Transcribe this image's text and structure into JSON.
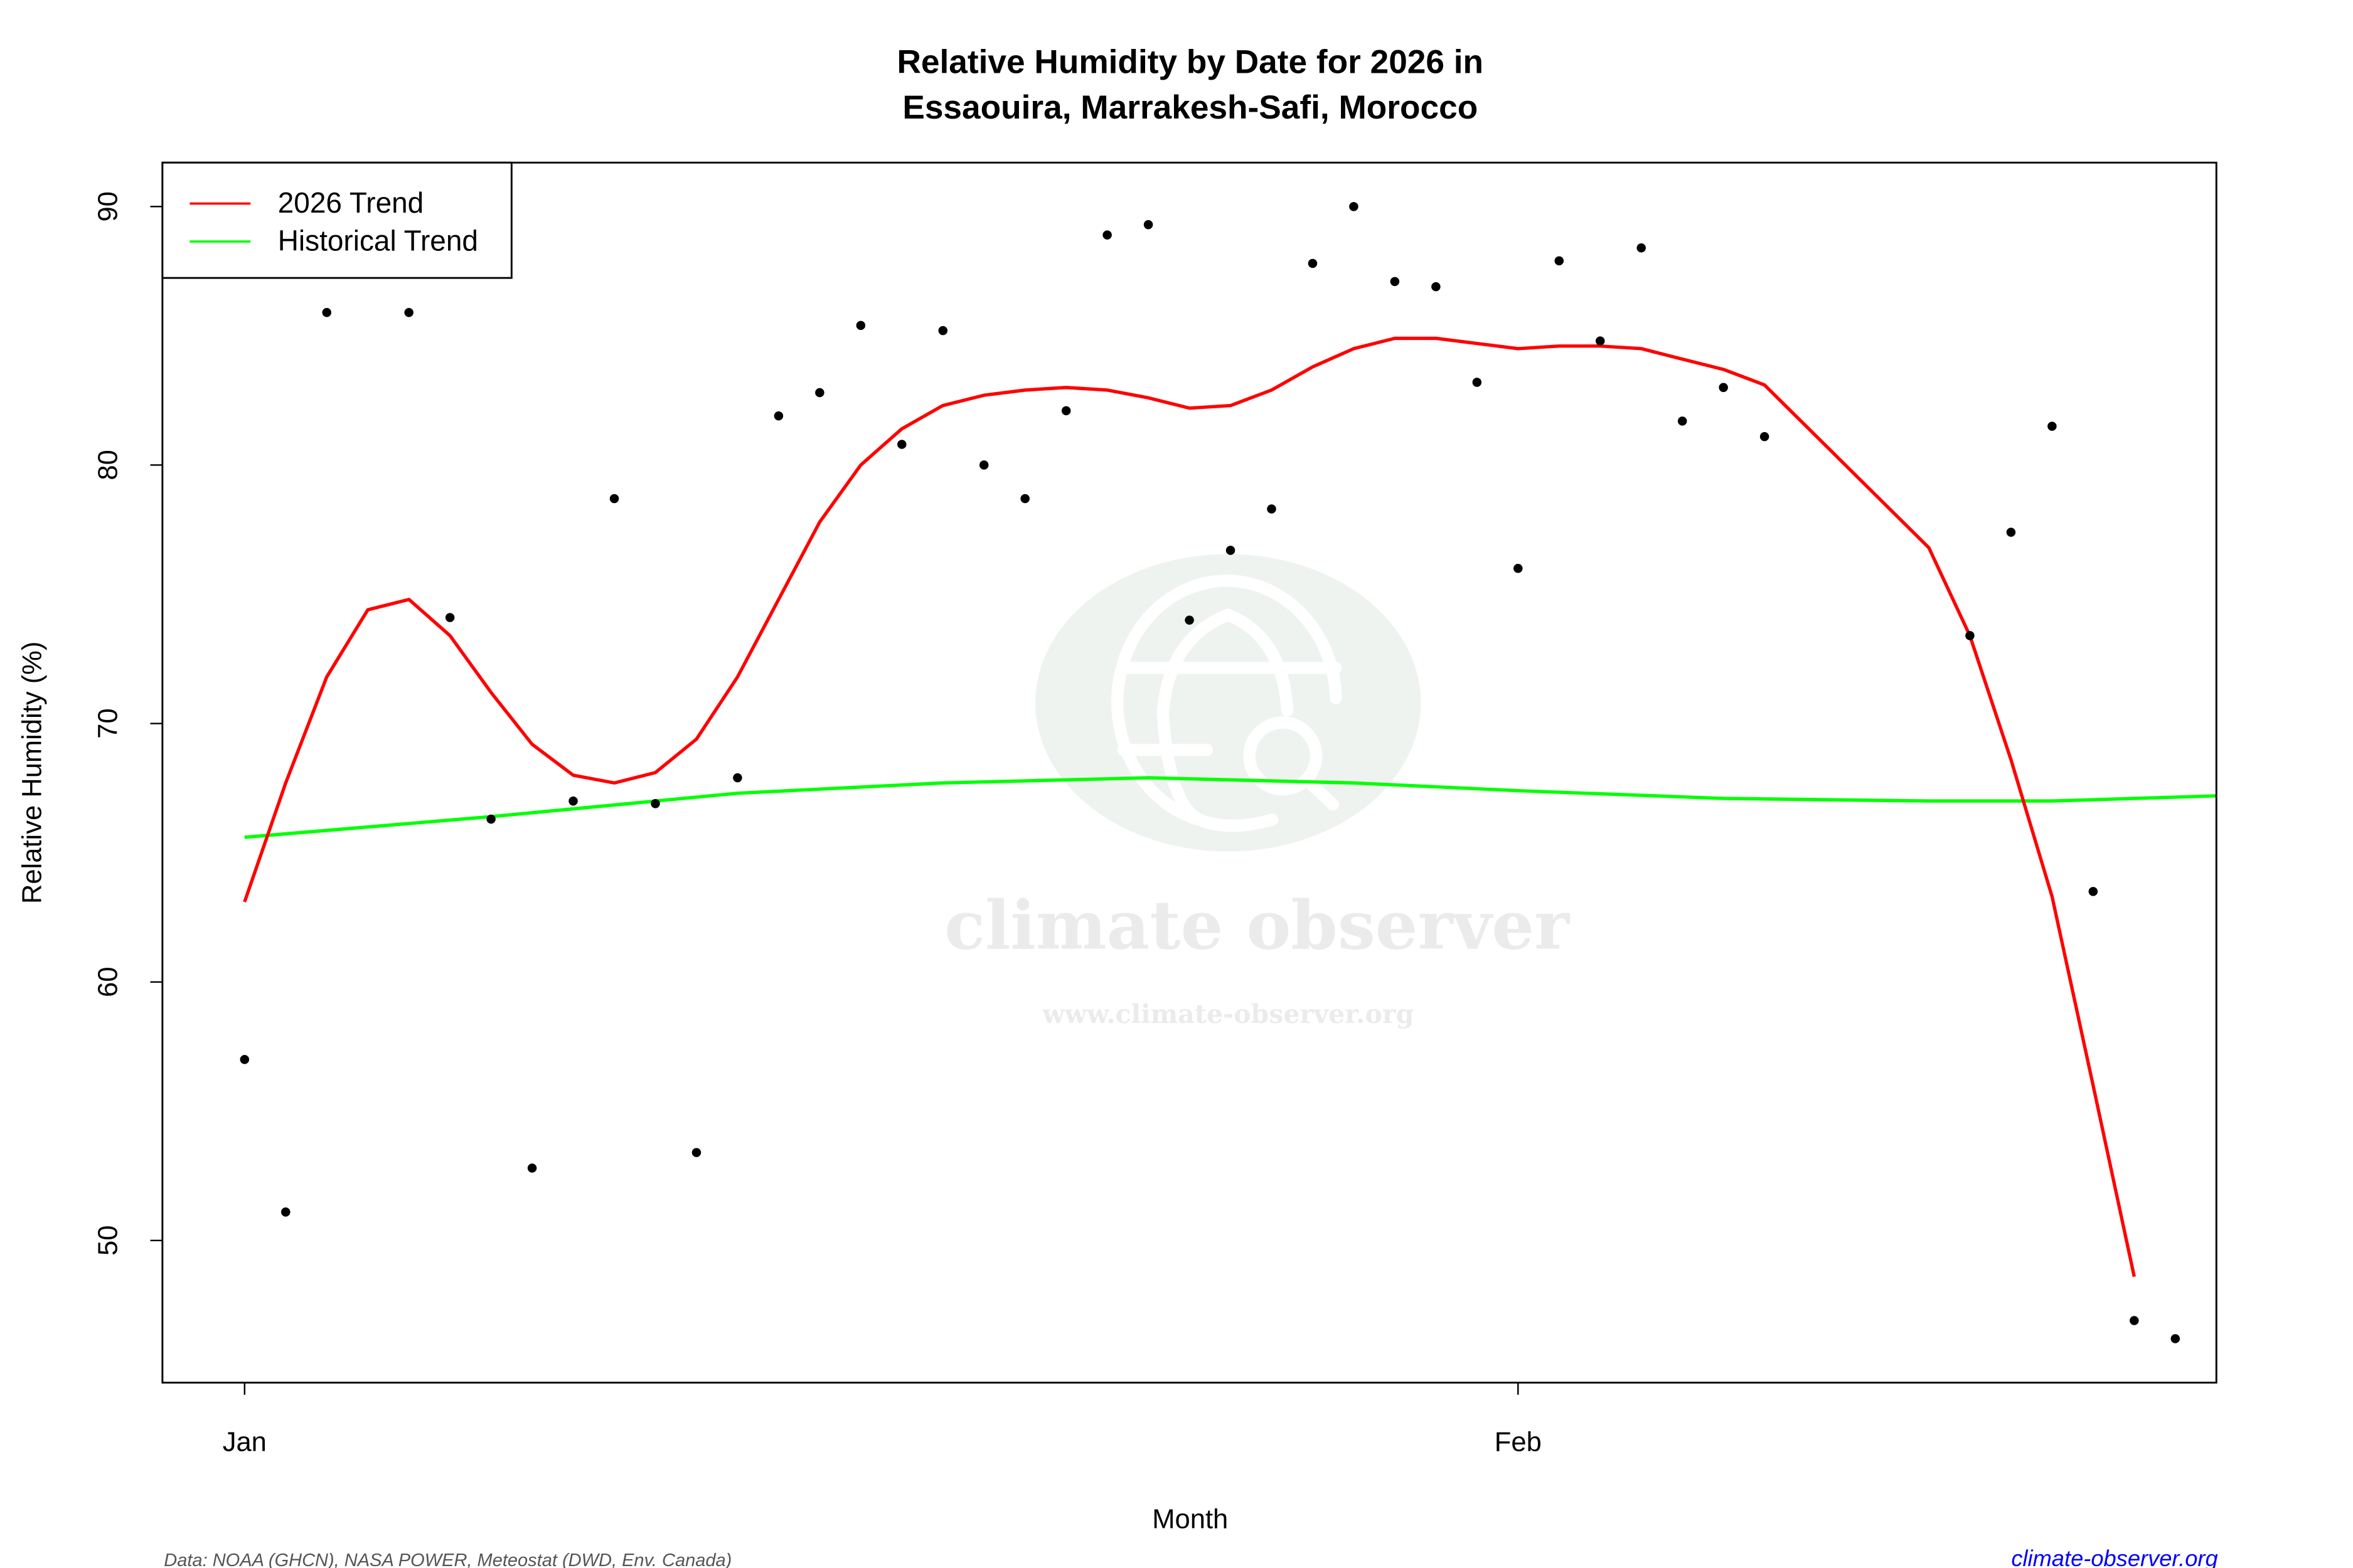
{
  "chart_data": {
    "type": "scatter",
    "title_line1": "Relative Humidity by Date for 2026 in",
    "title_line2": "Essaouira, Marrakesh-Safi, Morocco",
    "xlabel": "Month",
    "ylabel": "Relative Humidity (%)",
    "xlim": [
      "2025-12-30",
      "2026-02-18"
    ],
    "ylim": [
      44.5,
      91.7
    ],
    "x_ticks": [
      {
        "date": "2026-01-01",
        "label": "Jan"
      },
      {
        "date": "2026-02-01",
        "label": "Feb"
      }
    ],
    "y_ticks": [
      50,
      60,
      70,
      80,
      90
    ],
    "grid": false,
    "legend_position": "top-left",
    "points": {
      "color": "#000000",
      "x": [
        "2026-01-01",
        "2026-01-02",
        "2026-01-03",
        "2026-01-05",
        "2026-01-06",
        "2026-01-07",
        "2026-01-08",
        "2026-01-09",
        "2026-01-10",
        "2026-01-11",
        "2026-01-12",
        "2026-01-13",
        "2026-01-14",
        "2026-01-15",
        "2026-01-16",
        "2026-01-17",
        "2026-01-18",
        "2026-01-19",
        "2026-01-20",
        "2026-01-21",
        "2026-01-22",
        "2026-01-23",
        "2026-01-24",
        "2026-01-25",
        "2026-01-26",
        "2026-01-27",
        "2026-01-28",
        "2026-01-29",
        "2026-01-30",
        "2026-01-31",
        "2026-02-01",
        "2026-02-02",
        "2026-02-03",
        "2026-02-04",
        "2026-02-05",
        "2026-02-06",
        "2026-02-07",
        "2026-02-08",
        "2026-02-12",
        "2026-02-13",
        "2026-02-14",
        "2026-02-15",
        "2026-02-16",
        "2026-02-17"
      ],
      "y": [
        57.0,
        51.1,
        85.9,
        85.9,
        74.1,
        66.3,
        52.8,
        67.0,
        78.7,
        66.9,
        53.4,
        67.9,
        81.9,
        82.8,
        85.4,
        80.8,
        85.2,
        80.0,
        78.7,
        82.1,
        88.9,
        89.3,
        74.0,
        76.7,
        78.3,
        87.8,
        90.0,
        87.1,
        86.9,
        83.2,
        76.0,
        87.9,
        84.8,
        88.4,
        81.7,
        83.0,
        81.1,
        null,
        73.4,
        77.4,
        81.5,
        63.5,
        46.9,
        46.2
      ]
    },
    "series": [
      {
        "name": "2026 Trend",
        "color": "#ff0000",
        "x": [
          "2026-01-01",
          "2026-01-02",
          "2026-01-03",
          "2026-01-04",
          "2026-01-05",
          "2026-01-06",
          "2026-01-07",
          "2026-01-08",
          "2026-01-09",
          "2026-01-10",
          "2026-01-11",
          "2026-01-12",
          "2026-01-13",
          "2026-01-14",
          "2026-01-15",
          "2026-01-16",
          "2026-01-17",
          "2026-01-18",
          "2026-01-19",
          "2026-01-20",
          "2026-01-21",
          "2026-01-22",
          "2026-01-23",
          "2026-01-24",
          "2026-01-25",
          "2026-01-26",
          "2026-01-27",
          "2026-01-28",
          "2026-01-29",
          "2026-01-30",
          "2026-01-31",
          "2026-02-01",
          "2026-02-02",
          "2026-02-03",
          "2026-02-04",
          "2026-02-05",
          "2026-02-06",
          "2026-02-07",
          "2026-02-11",
          "2026-02-12",
          "2026-02-13",
          "2026-02-14",
          "2026-02-15",
          "2026-02-16"
        ],
        "y": [
          63.1,
          67.7,
          71.8,
          74.4,
          74.8,
          73.4,
          71.2,
          69.2,
          68.0,
          67.7,
          68.1,
          69.4,
          71.8,
          74.8,
          77.8,
          80.0,
          81.4,
          82.3,
          82.7,
          82.9,
          83.0,
          82.9,
          82.6,
          82.2,
          82.3,
          82.9,
          83.8,
          84.5,
          84.9,
          84.9,
          84.7,
          84.5,
          84.6,
          84.6,
          84.5,
          84.1,
          83.7,
          83.1,
          76.8,
          73.4,
          68.6,
          63.3,
          56.0,
          48.6
        ]
      },
      {
        "name": "Historical Trend",
        "color": "#00ff00",
        "x": [
          "2026-01-01",
          "2026-01-07",
          "2026-01-13",
          "2026-01-18",
          "2026-01-23",
          "2026-01-28",
          "2026-02-01",
          "2026-02-06",
          "2026-02-11",
          "2026-02-14",
          "2026-02-18"
        ],
        "y": [
          65.6,
          66.4,
          67.3,
          67.7,
          67.9,
          67.7,
          67.4,
          67.1,
          67.0,
          67.0,
          67.2
        ]
      }
    ]
  },
  "footer": {
    "source": "Data: NOAA (GHCN), NASA POWER, Meteostat (DWD, Env. Canada)",
    "link": "climate-observer.org",
    "link_color": "#0000ff"
  },
  "watermark": {
    "name": "climate observer",
    "url": "www.climate-observer.org"
  }
}
